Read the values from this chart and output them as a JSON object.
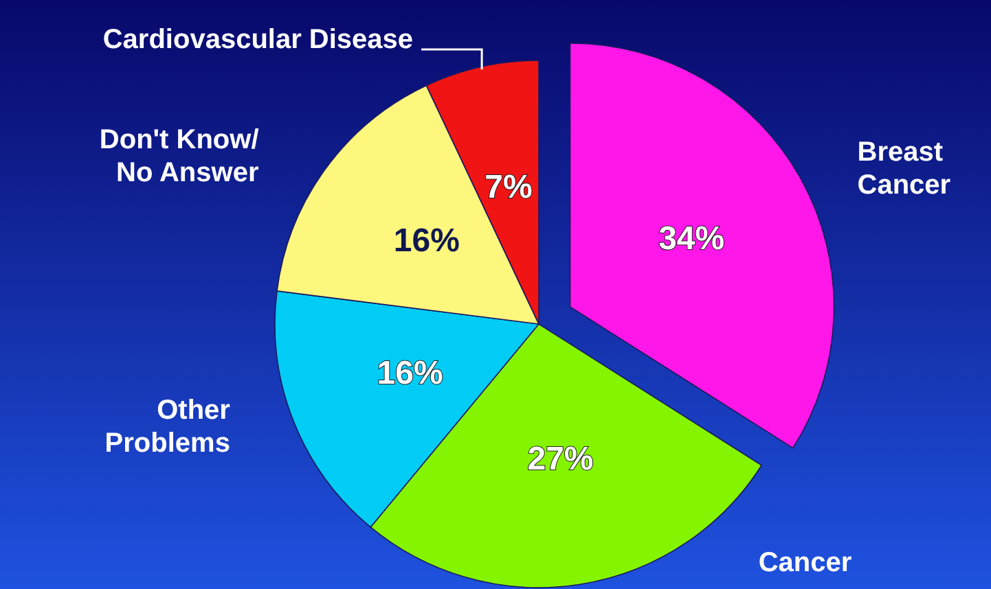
{
  "chart_data": {
    "type": "pie",
    "categories": [
      "Breast\nCancer",
      "Cancer",
      "Other\nProblems",
      "Don't Know/\nNo Answer",
      "Cardiovascular Disease"
    ],
    "values": [
      34,
      27,
      16,
      16,
      7
    ],
    "colors": [
      "#ff16e8",
      "#84f400",
      "#00ccf6",
      "#fdf77e",
      "#f01414"
    ],
    "value_labels": [
      "34%",
      "27%",
      "16%",
      "16%",
      "7%"
    ]
  }
}
